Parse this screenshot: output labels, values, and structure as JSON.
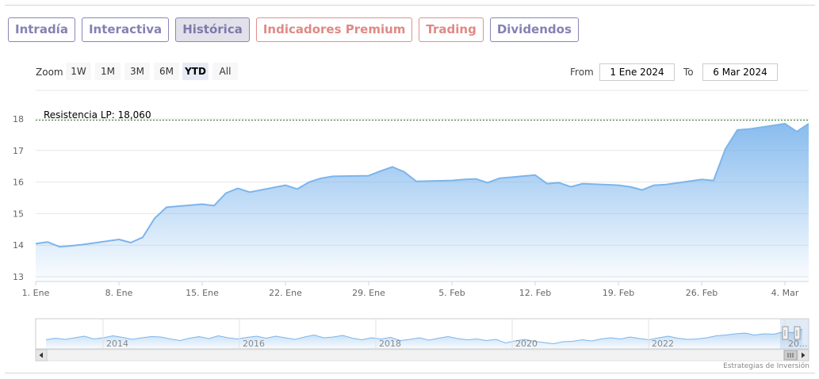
{
  "tabs": [
    {
      "label": "Intradía",
      "style": "violet"
    },
    {
      "label": "Interactiva",
      "style": "violet"
    },
    {
      "label": "Histórica",
      "style": "active"
    },
    {
      "label": "Indicadores Premium",
      "style": "red"
    },
    {
      "label": "Trading",
      "style": "red"
    },
    {
      "label": "Dividendos",
      "style": "violet"
    }
  ],
  "zoom": {
    "label": "Zoom",
    "buttons": [
      "1W",
      "1M",
      "3M",
      "6M",
      "YTD",
      "All"
    ],
    "active": "YTD"
  },
  "range": {
    "from_label": "From",
    "from_value": "1 Ene 2024",
    "to_label": "To",
    "to_value": "6 Mar 2024"
  },
  "credits": "Estrategias de Inversión",
  "colors": {
    "line": "#7cb5ec",
    "tab_violet": "#8581b5",
    "tab_red": "#de8a85",
    "resistance": "#2f7a2f"
  },
  "chart_data": {
    "type": "area",
    "ylim": [
      13,
      18
    ],
    "yticks": [
      "13",
      "14",
      "15",
      "16",
      "17",
      "18"
    ],
    "xticks": [
      "1. Ene",
      "8. Ene",
      "15. Ene",
      "22. Ene",
      "29. Ene",
      "5. Feb",
      "12. Feb",
      "19. Feb",
      "26. Feb",
      "4. Mar"
    ],
    "xlim": [
      "2024-01-01",
      "2024-03-06"
    ],
    "series": [
      {
        "points": [
          [
            "2024-01-01",
            14.05
          ],
          [
            "2024-01-02",
            14.1
          ],
          [
            "2024-01-03",
            13.95
          ],
          [
            "2024-01-04",
            13.98
          ],
          [
            "2024-01-05",
            14.02
          ],
          [
            "2024-01-08",
            14.18
          ],
          [
            "2024-01-09",
            14.08
          ],
          [
            "2024-01-10",
            14.25
          ],
          [
            "2024-01-11",
            14.85
          ],
          [
            "2024-01-12",
            15.2
          ],
          [
            "2024-01-15",
            15.3
          ],
          [
            "2024-01-16",
            15.25
          ],
          [
            "2024-01-17",
            15.65
          ],
          [
            "2024-01-18",
            15.8
          ],
          [
            "2024-01-19",
            15.68
          ],
          [
            "2024-01-22",
            15.9
          ],
          [
            "2024-01-23",
            15.78
          ],
          [
            "2024-01-24",
            16.0
          ],
          [
            "2024-01-25",
            16.12
          ],
          [
            "2024-01-26",
            16.18
          ],
          [
            "2024-01-29",
            16.2
          ],
          [
            "2024-01-30",
            16.35
          ],
          [
            "2024-01-31",
            16.48
          ],
          [
            "2024-02-01",
            16.32
          ],
          [
            "2024-02-02",
            16.02
          ],
          [
            "2024-02-05",
            16.05
          ],
          [
            "2024-02-06",
            16.08
          ],
          [
            "2024-02-07",
            16.1
          ],
          [
            "2024-02-08",
            15.98
          ],
          [
            "2024-02-09",
            16.12
          ],
          [
            "2024-02-12",
            16.22
          ],
          [
            "2024-02-13",
            15.95
          ],
          [
            "2024-02-14",
            15.98
          ],
          [
            "2024-02-15",
            15.85
          ],
          [
            "2024-02-16",
            15.95
          ],
          [
            "2024-02-19",
            15.9
          ],
          [
            "2024-02-20",
            15.85
          ],
          [
            "2024-02-21",
            15.75
          ],
          [
            "2024-02-22",
            15.9
          ],
          [
            "2024-02-23",
            15.92
          ],
          [
            "2024-02-26",
            16.08
          ],
          [
            "2024-02-27",
            16.05
          ],
          [
            "2024-02-28",
            17.05
          ],
          [
            "2024-02-29",
            17.65
          ],
          [
            "2024-03-01",
            17.68
          ],
          [
            "2024-03-04",
            17.85
          ],
          [
            "2024-03-05",
            17.6
          ],
          [
            "2024-03-06",
            17.85
          ]
        ]
      }
    ],
    "annotations": [
      {
        "label": "Resistencia LP: 18,060",
        "value": 18.06,
        "line": "dashed"
      }
    ],
    "grid": true,
    "navigator": {
      "xticks": [
        "2014",
        "2016",
        "2018",
        "2020",
        "2022",
        "20..."
      ],
      "values": [
        13.4,
        13.8,
        13.5,
        13.9,
        14.3,
        13.6,
        13.9,
        14.4,
        14.0,
        13.5,
        13.9,
        14.2,
        14.1,
        13.6,
        13.2,
        13.8,
        14.2,
        13.7,
        14.4,
        13.9,
        13.6,
        14.0,
        14.3,
        13.8,
        14.3,
        13.9,
        13.5,
        14.1,
        14.6,
        13.9,
        14.1,
        14.5,
        13.8,
        13.4,
        13.9,
        13.6,
        14.0,
        13.2,
        13.5,
        13.9,
        13.3,
        13.8,
        14.2,
        13.7,
        13.4,
        13.6,
        13.2,
        13.5,
        12.6,
        13.1,
        13.5,
        13.0,
        12.7,
        12.4,
        12.9,
        13.0,
        13.4,
        13.1,
        13.6,
        13.9,
        13.6,
        14.1,
        13.7,
        13.4,
        13.9,
        14.3,
        13.8,
        13.5,
        13.6,
        13.9,
        14.4,
        14.6,
        14.9,
        15.1,
        14.6,
        14.9,
        14.8,
        15.4,
        15.2,
        16.1
      ]
    }
  }
}
